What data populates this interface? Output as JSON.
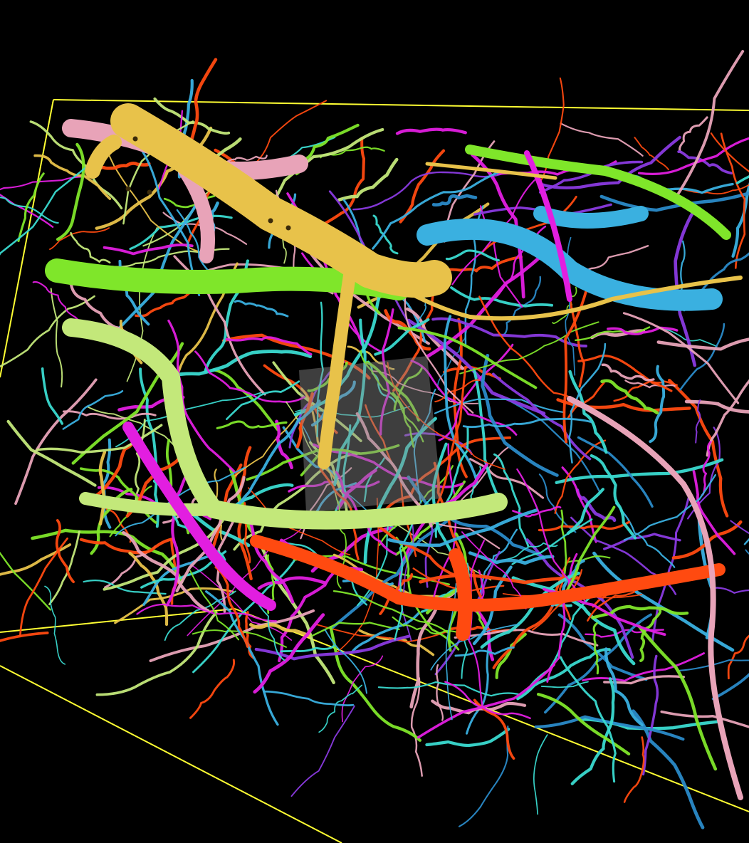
{
  "scene": {
    "background": "#000000",
    "bounding_box_color": "#ffff33",
    "segment_colors": {
      "gold": "#e8c24a",
      "pink": "#e8a3b8",
      "green": "#7fe62a",
      "lime": "#c3e87a",
      "sky": "#3ab0e0",
      "deep_blue": "#2a8ac8",
      "magenta": "#e21ee0",
      "orange_red": "#ff4a10",
      "cyan": "#3adad0",
      "violet": "#8a3ae0",
      "gray_patch": "#8a8a8a"
    }
  }
}
